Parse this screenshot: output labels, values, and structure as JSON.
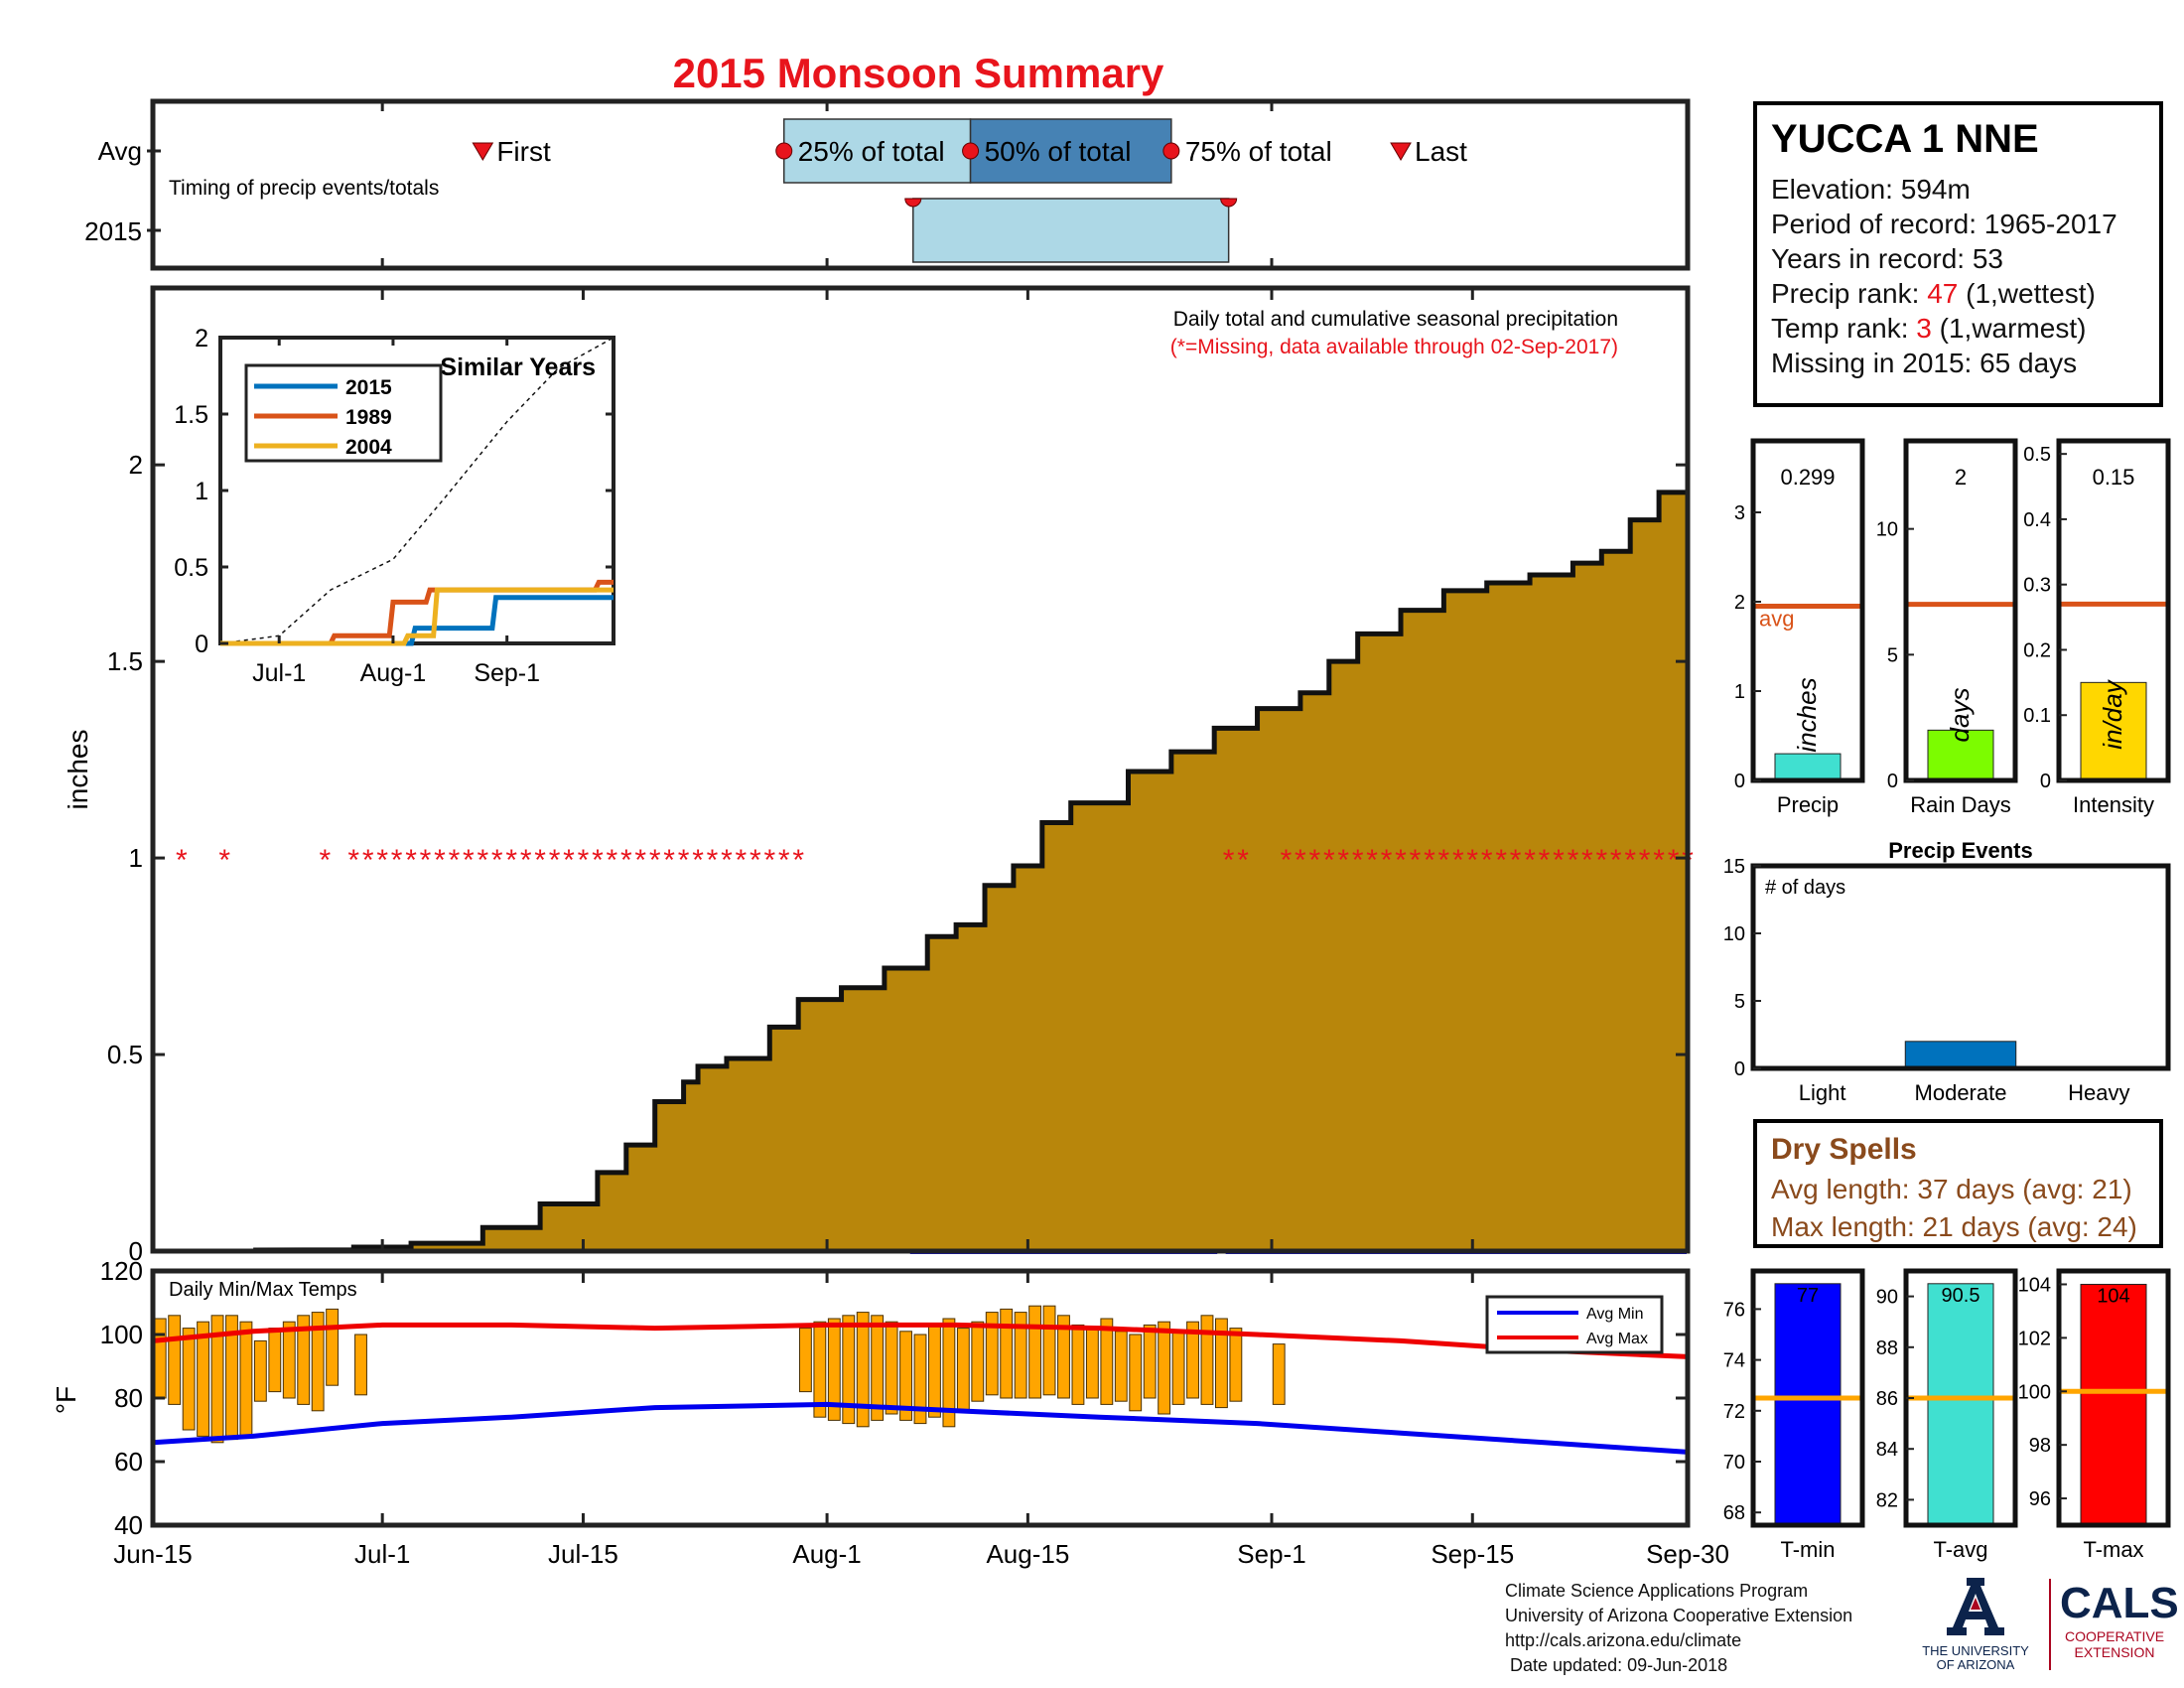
{
  "title": "2015 Monsoon Summary",
  "colors": {
    "title": "#e8141c",
    "cumulative_fill": "#b8860b",
    "missing": "#e8141c",
    "avg_line": "#d95319",
    "box_light": "#add8e6",
    "box_dark": "#4682b4"
  },
  "timing": {
    "note": "Timing of precip events/totals",
    "row_labels": [
      "Avg",
      "2015"
    ],
    "first_label": "First",
    "last_label": "Last",
    "pct25_label": "25% of total",
    "pct50_label": "50% of total",
    "pct75_label": "75% of total"
  },
  "main_chart": {
    "ylabel": "inches",
    "note": "Daily total and cumulative seasonal precipitation",
    "missing_note": "(*=Missing, data available through 02-Sep-2017)",
    "missing_marker": "*"
  },
  "inset": {
    "title": "Similar Years",
    "legend": [
      "2015",
      "1989",
      "2004"
    ],
    "xticks": [
      "Jul-1",
      "Aug-1",
      "Sep-1"
    ],
    "yticks": [
      "0",
      "0.5",
      "1",
      "1.5",
      "2"
    ]
  },
  "temps": {
    "note": "Daily Min/Max Temps",
    "ylabel": "°F",
    "legend": [
      "Avg Min",
      "Avg Max"
    ],
    "yticks": [
      "40",
      "60",
      "80",
      "100",
      "120"
    ]
  },
  "xaxis": {
    "ticks": [
      "Jun-15",
      "Jul-1",
      "Jul-15",
      "Aug-1",
      "Aug-15",
      "Sep-1",
      "Sep-15",
      "Sep-30"
    ]
  },
  "station": {
    "name": "YUCCA 1 NNE",
    "elevation": "Elevation: 594m",
    "period": "Period of record: 1965-2017",
    "years": "Years in record: 53",
    "precip_rank_label": "Precip rank:",
    "precip_rank_value": "47",
    "precip_rank_note": "(1,wettest)",
    "temp_rank_label": "Temp rank:",
    "temp_rank_value": "3",
    "temp_rank_note": "(1,warmest)",
    "missing": "Missing in 2015: 65 days"
  },
  "small_bars": [
    {
      "label": "Precip",
      "value_text": "0.299",
      "unit": "inches",
      "avg_label": "avg",
      "yticks": [
        "0",
        "1",
        "2",
        "3"
      ]
    },
    {
      "label": "Rain Days",
      "value_text": "2",
      "unit": "days",
      "yticks": [
        "0",
        "5",
        "10"
      ]
    },
    {
      "label": "Intensity",
      "value_text": "0.15",
      "unit": "in/day",
      "yticks": [
        "0",
        "0.1",
        "0.2",
        "0.3",
        "0.4",
        "0.5"
      ]
    }
  ],
  "precip_events": {
    "title": "Precip Events",
    "note": "# of days",
    "categories": [
      "Light",
      "Moderate",
      "Heavy"
    ],
    "yticks": [
      "0",
      "5",
      "10",
      "15"
    ]
  },
  "dry_spells": {
    "title": "Dry Spells",
    "avg_length": "Avg length: 37 days (avg: 21)",
    "max_length": "Max length: 21 days (avg: 24)"
  },
  "temp_bars": [
    {
      "label": "T-min",
      "value_text": "77",
      "yticks": [
        "68",
        "70",
        "72",
        "74",
        "76"
      ]
    },
    {
      "label": "T-avg",
      "value_text": "90.5",
      "yticks": [
        "82",
        "84",
        "86",
        "88",
        "90"
      ]
    },
    {
      "label": "T-max",
      "value_text": "104",
      "yticks": [
        "96",
        "98",
        "100",
        "102",
        "104"
      ]
    }
  ],
  "credits": {
    "line1": "Climate Science Applications Program",
    "line2": "University of Arizona Cooperative Extension",
    "line3": "http://cals.arizona.edu/climate",
    "line4": " Date updated: 09-Jun-2018"
  },
  "logos": {
    "ua_line1": "THE UNIVERSITY",
    "ua_line2": "OF ARIZONA",
    "cals": "CALS",
    "cals_line1": "COOPERATIVE",
    "cals_line2": "EXTENSION"
  },
  "chart_data": [
    {
      "type": "bar",
      "name": "timing",
      "categories": [
        "Avg",
        "2015"
      ],
      "avg": {
        "first": "Jul-8",
        "pct25": "Jul-29",
        "pct50": "Aug-11",
        "pct75": "Aug-25",
        "last": "Sep-10"
      },
      "y2015": {
        "pct25": "Aug-7",
        "pct75": "Aug-29"
      }
    },
    {
      "type": "area",
      "name": "cumulative precipitation",
      "xlim": [
        "Jun-15",
        "Sep-30"
      ],
      "ylim": [
        0,
        2.45
      ],
      "yticks": [
        0,
        0.5,
        1,
        1.5,
        2
      ],
      "x": [
        "Jun-15",
        "Jun-22",
        "Jun-29",
        "Jul-3",
        "Jul-8",
        "Jul-12",
        "Jul-16",
        "Jul-18",
        "Jul-20",
        "Jul-22",
        "Jul-23",
        "Jul-25",
        "Jul-28",
        "Jul-30",
        "Aug-2",
        "Aug-5",
        "Aug-8",
        "Aug-10",
        "Aug-12",
        "Aug-14",
        "Aug-16",
        "Aug-18",
        "Aug-22",
        "Aug-25",
        "Aug-28",
        "Aug-31",
        "Sep-3",
        "Sep-5",
        "Sep-7",
        "Sep-10",
        "Sep-13",
        "Sep-16",
        "Sep-19",
        "Sep-22",
        "Sep-24",
        "Sep-26",
        "Sep-28",
        "Sep-30"
      ],
      "values": [
        0,
        0.003,
        0.01,
        0.02,
        0.06,
        0.12,
        0.2,
        0.27,
        0.38,
        0.43,
        0.47,
        0.49,
        0.57,
        0.64,
        0.67,
        0.72,
        0.8,
        0.83,
        0.93,
        0.98,
        1.09,
        1.14,
        1.22,
        1.27,
        1.33,
        1.38,
        1.42,
        1.5,
        1.57,
        1.63,
        1.68,
        1.7,
        1.72,
        1.75,
        1.78,
        1.86,
        1.93,
        1.94
      ]
    },
    {
      "type": "bar",
      "name": "avg daily precipitation",
      "x_ranges": [
        [
          "Aug-7",
          "Aug-28"
        ],
        [
          "Aug-29",
          "Sep-30"
        ]
      ],
      "values": [
        0.1,
        0.3
      ]
    },
    {
      "type": "scatter",
      "name": "Missing",
      "missing_ranges": [
        [
          "Jun-17",
          "Jun-17"
        ],
        [
          "Jun-20",
          "Jun-20"
        ],
        [
          "Jun-27",
          "Jun-27"
        ],
        [
          "Jun-29",
          "Jul-30"
        ],
        [
          "Aug-29",
          "Aug-30"
        ],
        [
          "Sep-2",
          "Sep-30"
        ]
      ],
      "y": 1.0
    },
    {
      "type": "line",
      "name": "Similar Years",
      "xlim": [
        "Jun-15",
        "Sep-30"
      ],
      "ylim": [
        0,
        2
      ],
      "series": [
        {
          "name": "2015",
          "x": [
            "Jun-15",
            "Aug-6",
            "Aug-7",
            "Aug-28",
            "Aug-29",
            "Sep-30"
          ],
          "values": [
            0,
            0,
            0.1,
            0.1,
            0.3,
            0.3
          ]
        },
        {
          "name": "1989",
          "x": [
            "Jun-15",
            "Jul-15",
            "Jul-16",
            "Jul-31",
            "Aug-1",
            "Aug-10",
            "Aug-11",
            "Sep-25",
            "Sep-26",
            "Sep-30"
          ],
          "values": [
            0,
            0,
            0.05,
            0.05,
            0.27,
            0.27,
            0.35,
            0.35,
            0.4,
            0.4
          ]
        },
        {
          "name": "",
          "x": [
            "Jun-15",
            "Jul-1",
            "Jul-15",
            "Aug-1",
            "Aug-15",
            "Sep-1",
            "Sep-15",
            "Sep-30"
          ],
          "values": [
            0,
            0.05,
            0.35,
            0.55,
            0.95,
            1.45,
            1.8,
            2.0
          ]
        },
        {
          "name": "2004",
          "x": [
            "Jun-15",
            "Aug-4",
            "Aug-5",
            "Aug-12",
            "Aug-13",
            "Sep-30"
          ],
          "values": [
            0,
            0,
            0.05,
            0.05,
            0.35,
            0.35
          ]
        }
      ]
    },
    {
      "type": "bar",
      "name": "Daily Min/Max Temps",
      "ylim": [
        40,
        120
      ],
      "bars": [
        {
          "x": "Jun-15",
          "min": 80,
          "max": 105
        },
        {
          "x": "Jun-16",
          "min": 78,
          "max": 106
        },
        {
          "x": "Jun-17",
          "min": 70,
          "max": 102
        },
        {
          "x": "Jun-18",
          "min": 68,
          "max": 104
        },
        {
          "x": "Jun-19",
          "min": 66,
          "max": 106
        },
        {
          "x": "Jun-20",
          "min": 67,
          "max": 106
        },
        {
          "x": "Jun-21",
          "min": 68,
          "max": 104
        },
        {
          "x": "Jun-22",
          "min": 79,
          "max": 98
        },
        {
          "x": "Jun-23",
          "min": 82,
          "max": 102
        },
        {
          "x": "Jun-24",
          "min": 80,
          "max": 104
        },
        {
          "x": "Jun-25",
          "min": 78,
          "max": 106
        },
        {
          "x": "Jun-26",
          "min": 76,
          "max": 107
        },
        {
          "x": "Jun-27",
          "min": 84,
          "max": 108
        },
        {
          "x": "Jun-29",
          "min": 81,
          "max": 100
        },
        {
          "x": "Jul-30",
          "min": 82,
          "max": 102
        },
        {
          "x": "Jul-31",
          "min": 74,
          "max": 104
        },
        {
          "x": "Aug-1",
          "min": 73,
          "max": 105
        },
        {
          "x": "Aug-2",
          "min": 72,
          "max": 106
        },
        {
          "x": "Aug-3",
          "min": 71,
          "max": 107
        },
        {
          "x": "Aug-4",
          "min": 73,
          "max": 106
        },
        {
          "x": "Aug-5",
          "min": 75,
          "max": 104
        },
        {
          "x": "Aug-6",
          "min": 73,
          "max": 101
        },
        {
          "x": "Aug-7",
          "min": 72,
          "max": 100
        },
        {
          "x": "Aug-8",
          "min": 74,
          "max": 103
        },
        {
          "x": "Aug-9",
          "min": 71,
          "max": 105
        },
        {
          "x": "Aug-10",
          "min": 76,
          "max": 102
        },
        {
          "x": "Aug-11",
          "min": 79,
          "max": 104
        },
        {
          "x": "Aug-12",
          "min": 81,
          "max": 107
        },
        {
          "x": "Aug-13",
          "min": 80,
          "max": 108
        },
        {
          "x": "Aug-14",
          "min": 80,
          "max": 107
        },
        {
          "x": "Aug-15",
          "min": 80,
          "max": 109
        },
        {
          "x": "Aug-16",
          "min": 81,
          "max": 109
        },
        {
          "x": "Aug-17",
          "min": 80,
          "max": 106
        },
        {
          "x": "Aug-18",
          "min": 78,
          "max": 103
        },
        {
          "x": "Aug-19",
          "min": 80,
          "max": 102
        },
        {
          "x": "Aug-20",
          "min": 78,
          "max": 105
        },
        {
          "x": "Aug-21",
          "min": 79,
          "max": 101
        },
        {
          "x": "Aug-22",
          "min": 76,
          "max": 100
        },
        {
          "x": "Aug-23",
          "min": 80,
          "max": 103
        },
        {
          "x": "Aug-24",
          "min": 75,
          "max": 104
        },
        {
          "x": "Aug-25",
          "min": 78,
          "max": 101
        },
        {
          "x": "Aug-26",
          "min": 80,
          "max": 104
        },
        {
          "x": "Aug-27",
          "min": 78,
          "max": 106
        },
        {
          "x": "Aug-28",
          "min": 77,
          "max": 105
        },
        {
          "x": "Aug-29",
          "min": 79,
          "max": 102
        },
        {
          "x": "Sep-1",
          "min": 78,
          "max": 97
        }
      ]
    },
    {
      "type": "line",
      "name": "Avg temps",
      "ylim": [
        40,
        120
      ],
      "series": [
        {
          "name": "Avg Min",
          "x": [
            "Jun-15",
            "Jun-22",
            "Jul-1",
            "Jul-10",
            "Jul-20",
            "Aug-1",
            "Aug-10",
            "Aug-20",
            "Aug-31",
            "Sep-10",
            "Sep-20",
            "Sep-30"
          ],
          "values": [
            66,
            68,
            72,
            74,
            77,
            78,
            76,
            74,
            72,
            69,
            66,
            63
          ]
        },
        {
          "name": "Avg Max",
          "x": [
            "Jun-15",
            "Jun-22",
            "Jul-1",
            "Jul-10",
            "Jul-20",
            "Aug-1",
            "Aug-10",
            "Aug-20",
            "Aug-31",
            "Sep-10",
            "Sep-20",
            "Sep-30"
          ],
          "values": [
            98,
            101,
            103,
            103,
            102,
            103,
            103,
            102,
            100,
            98,
            95,
            93
          ]
        }
      ]
    },
    {
      "type": "bar",
      "name": "Precip summary",
      "categories": [
        "Precip",
        "Rain Days",
        "Intensity"
      ],
      "values": [
        0.299,
        2,
        0.15
      ],
      "averages": [
        1.95,
        7,
        0.27
      ],
      "ylims": [
        [
          0,
          3.8
        ],
        [
          0,
          13.5
        ],
        [
          0,
          0.52
        ]
      ],
      "bar_colors": [
        "#40e0d0",
        "#7cfc00",
        "#ffd700"
      ]
    },
    {
      "type": "bar",
      "name": "Precip Events",
      "categories": [
        "Light",
        "Moderate",
        "Heavy"
      ],
      "values": [
        0,
        2,
        0
      ],
      "ylim": [
        0,
        15
      ]
    },
    {
      "type": "bar",
      "name": "Temperature summary",
      "categories": [
        "T-min",
        "T-avg",
        "T-max"
      ],
      "values": [
        77,
        90.5,
        104
      ],
      "averages": [
        72.5,
        86,
        100
      ],
      "ylims": [
        [
          67.5,
          77.5
        ],
        [
          81,
          91
        ],
        [
          95,
          104.5
        ]
      ],
      "bar_colors": [
        "#0000ff",
        "#40e0d0",
        "#ff0000"
      ]
    }
  ]
}
